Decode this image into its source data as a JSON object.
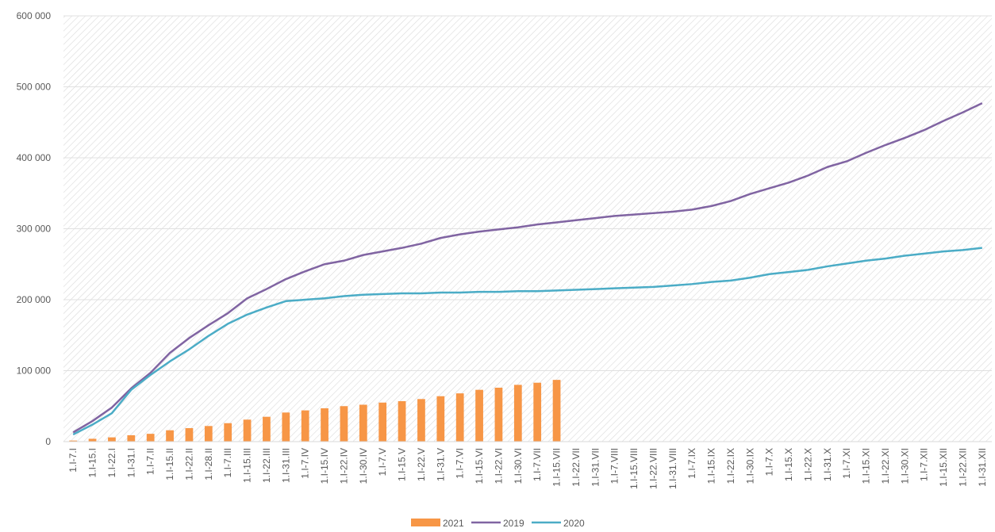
{
  "chart_data": {
    "type": "combo",
    "categories": [
      "1.I-7.I",
      "1.I-15.I",
      "1.I-22.I",
      "1.I-31.I",
      "1.I-7.II",
      "1.I-15.II",
      "1.I-22.II",
      "1.I-28.II",
      "1.I-7.III",
      "1.I-15.III",
      "1.I-22.III",
      "1.I-31.III",
      "1.I-7.IV",
      "1.I-15.IV",
      "1.I-22.IV",
      "1.I-30.IV",
      "1.I-7.V",
      "1.I-15.V",
      "1.I-22.V",
      "1.I-31.V",
      "1.I-7.VI",
      "1.I-15.VI",
      "1.I-22.VI",
      "1.I-30.VI",
      "1.I-7.VII",
      "1.I-15.VII",
      "1.I-22.VII",
      "1.I-31.VII",
      "1.I-7.VIII",
      "1.I-15.VIII",
      "1.I-22.VIII",
      "1.I-31.VIII",
      "1.I-7.IX",
      "1.I-15.IX",
      "1.I-22.IX",
      "1.I-30.IX",
      "1.I-7.X",
      "1.I-15.X",
      "1.I-22.X",
      "1.I-31.X",
      "1.I-7.XI",
      "1.I-15.XI",
      "1.I-22.XI",
      "1.I-30.XI",
      "1.I-7.XII",
      "1.I-15.XII",
      "1.I-22.XII",
      "1.I-31.XII"
    ],
    "series": [
      {
        "name": "2021",
        "type": "bar",
        "color": "#f79646",
        "values": [
          1500,
          4000,
          6000,
          9000,
          11000,
          16000,
          19000,
          22000,
          26000,
          31000,
          35000,
          41000,
          44000,
          47000,
          50000,
          52000,
          55000,
          57000,
          60000,
          64000,
          68000,
          73000,
          76000,
          80000,
          83000,
          87000,
          null,
          null,
          null,
          null,
          null,
          null,
          null,
          null,
          null,
          null,
          null,
          null,
          null,
          null,
          null,
          null,
          null,
          null,
          null,
          null,
          null,
          null
        ]
      },
      {
        "name": "2019",
        "type": "line",
        "color": "#8064a2",
        "values": [
          13000,
          29000,
          48000,
          75000,
          97000,
          125000,
          146000,
          164000,
          181000,
          202000,
          215000,
          229000,
          240000,
          250000,
          255000,
          263000,
          268000,
          273000,
          279000,
          287000,
          292000,
          296000,
          299000,
          302000,
          306000,
          309000,
          312000,
          315000,
          318000,
          320000,
          322000,
          324000,
          327000,
          332000,
          339000,
          349000,
          357000,
          365000,
          375000,
          387000,
          395000,
          407000,
          418000,
          428000,
          439000,
          452000,
          464000,
          477000
        ]
      },
      {
        "name": "2020",
        "type": "line",
        "color": "#4bacc6",
        "values": [
          10000,
          24000,
          40000,
          73000,
          94000,
          113000,
          130000,
          149000,
          166000,
          179000,
          189000,
          198000,
          200000,
          202000,
          205000,
          207000,
          208000,
          209000,
          209000,
          210000,
          210000,
          211000,
          211000,
          212000,
          212000,
          213000,
          214000,
          215000,
          216000,
          217000,
          218000,
          220000,
          222000,
          225000,
          227000,
          231000,
          236000,
          239000,
          242000,
          247000,
          251000,
          255000,
          258000,
          262000,
          265000,
          268000,
          270000,
          273000
        ]
      }
    ],
    "ylim": [
      0,
      600000
    ],
    "yticks": [
      0,
      {
        "value": 100000,
        "label": "100 000"
      },
      {
        "value": 200000,
        "label": "200 000"
      },
      {
        "value": 300000,
        "label": "300 000"
      },
      {
        "value": 400000,
        "label": "400 000"
      },
      {
        "value": 500000,
        "label": "500 000"
      },
      {
        "value": 600000,
        "label": "600 000"
      }
    ],
    "grid": true
  }
}
